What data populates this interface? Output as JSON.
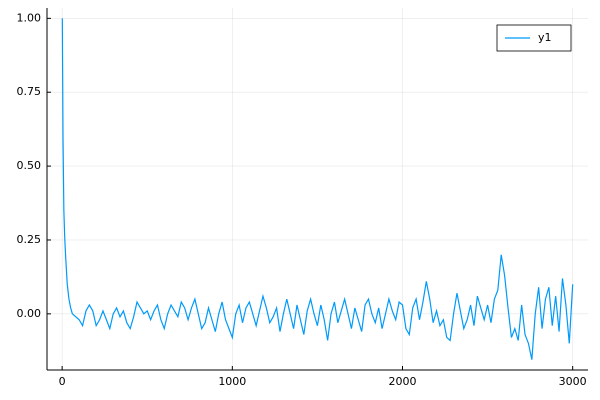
{
  "chart_data": {
    "type": "line",
    "x": [
      1,
      5,
      10,
      15,
      20,
      30,
      40,
      50,
      60,
      80,
      100,
      120,
      140,
      160,
      180,
      200,
      220,
      240,
      260,
      280,
      300,
      320,
      340,
      360,
      380,
      400,
      420,
      440,
      460,
      480,
      500,
      520,
      540,
      560,
      580,
      600,
      620,
      640,
      660,
      680,
      700,
      720,
      740,
      760,
      780,
      800,
      820,
      840,
      860,
      880,
      900,
      920,
      940,
      960,
      980,
      1000,
      1020,
      1040,
      1060,
      1080,
      1100,
      1120,
      1140,
      1160,
      1180,
      1200,
      1220,
      1240,
      1260,
      1280,
      1300,
      1320,
      1340,
      1360,
      1380,
      1400,
      1420,
      1440,
      1460,
      1480,
      1500,
      1520,
      1540,
      1560,
      1580,
      1600,
      1620,
      1640,
      1660,
      1680,
      1700,
      1720,
      1740,
      1760,
      1780,
      1800,
      1820,
      1840,
      1860,
      1880,
      1900,
      1920,
      1940,
      1960,
      1980,
      2000,
      2020,
      2040,
      2060,
      2080,
      2100,
      2120,
      2140,
      2160,
      2180,
      2200,
      2220,
      2240,
      2260,
      2280,
      2300,
      2320,
      2340,
      2360,
      2380,
      2400,
      2420,
      2440,
      2460,
      2480,
      2500,
      2520,
      2540,
      2560,
      2580,
      2600,
      2620,
      2640,
      2660,
      2680,
      2700,
      2720,
      2740,
      2760,
      2780,
      2800,
      2820,
      2840,
      2860,
      2880,
      2900,
      2920,
      2940,
      2960,
      2980,
      3000
    ],
    "series": [
      {
        "name": "y1",
        "color": "#009afa",
        "values": [
          1.0,
          0.6,
          0.35,
          0.26,
          0.2,
          0.1,
          0.05,
          0.02,
          0.0,
          -0.01,
          -0.02,
          -0.04,
          0.01,
          0.03,
          0.01,
          -0.04,
          -0.02,
          0.01,
          -0.02,
          -0.05,
          0.0,
          0.02,
          -0.01,
          0.01,
          -0.03,
          -0.05,
          -0.01,
          0.04,
          0.02,
          0.0,
          0.01,
          -0.02,
          0.01,
          0.03,
          -0.02,
          -0.05,
          0.0,
          0.03,
          0.01,
          -0.01,
          0.04,
          0.02,
          -0.02,
          0.02,
          0.05,
          0.0,
          -0.05,
          -0.03,
          0.02,
          -0.02,
          -0.06,
          0.0,
          0.04,
          -0.02,
          -0.05,
          -0.08,
          0.0,
          0.03,
          -0.03,
          0.02,
          0.04,
          0.0,
          -0.04,
          0.01,
          0.06,
          0.02,
          -0.03,
          -0.01,
          0.02,
          -0.06,
          0.0,
          0.05,
          0.0,
          -0.05,
          0.03,
          -0.02,
          -0.07,
          0.01,
          0.05,
          0.0,
          -0.04,
          0.03,
          -0.02,
          -0.09,
          0.0,
          0.04,
          -0.03,
          0.01,
          0.05,
          0.0,
          -0.05,
          0.02,
          -0.02,
          -0.06,
          0.03,
          0.05,
          0.0,
          -0.03,
          0.02,
          -0.05,
          0.0,
          0.05,
          0.01,
          -0.02,
          0.04,
          0.03,
          -0.05,
          -0.07,
          0.02,
          0.05,
          -0.02,
          0.04,
          0.11,
          0.05,
          -0.03,
          0.01,
          -0.04,
          -0.02,
          -0.08,
          -0.09,
          0.0,
          0.07,
          0.01,
          -0.05,
          -0.02,
          0.03,
          -0.04,
          0.06,
          0.02,
          -0.02,
          0.03,
          -0.03,
          0.05,
          0.08,
          0.2,
          0.13,
          0.02,
          -0.08,
          -0.05,
          -0.09,
          0.03,
          -0.07,
          -0.1,
          -0.155,
          0.0,
          0.09,
          -0.05,
          0.05,
          0.09,
          -0.04,
          0.06,
          -0.06,
          0.12,
          0.03,
          -0.1,
          0.1
        ]
      }
    ],
    "xlim": [
      -89,
      3090
    ],
    "xticks": [
      0,
      1000,
      2000,
      3000
    ],
    "ylim": [
      -0.19,
      1.035
    ],
    "yticks": [
      {
        "value": 0,
        "label": "0.00"
      },
      {
        "value": 0.25,
        "label": "0.25"
      },
      {
        "value": 0.5,
        "label": "0.50"
      },
      {
        "value": 0.75,
        "label": "0.75"
      },
      {
        "value": 1,
        "label": "1.00"
      }
    ],
    "grid": true,
    "legend": "top-right"
  }
}
